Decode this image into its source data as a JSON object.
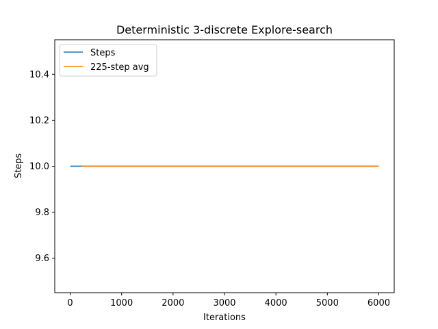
{
  "chart_data": {
    "type": "line",
    "title": "Deterministic 3-discrete Explore-search",
    "xlabel": "Iterations",
    "ylabel": "Steps",
    "xlim": [
      -300,
      6300
    ],
    "ylim": [
      9.45,
      10.55
    ],
    "xticks": [
      0,
      1000,
      2000,
      3000,
      4000,
      5000,
      6000
    ],
    "yticks": [
      9.6,
      9.8,
      10.0,
      10.2,
      10.4
    ],
    "ytick_labels": [
      "9.6",
      "9.8",
      "10.0",
      "10.2",
      "10.4"
    ],
    "grid": false,
    "legend_position": "top-left",
    "series": [
      {
        "name": "Steps",
        "color": "#1f77b4",
        "x": [
          0,
          6000
        ],
        "y": [
          10.0,
          10.0
        ]
      },
      {
        "name": "225-step avg",
        "color": "#ff7f0e",
        "x": [
          224,
          6000
        ],
        "y": [
          10.0,
          10.0
        ]
      }
    ]
  }
}
